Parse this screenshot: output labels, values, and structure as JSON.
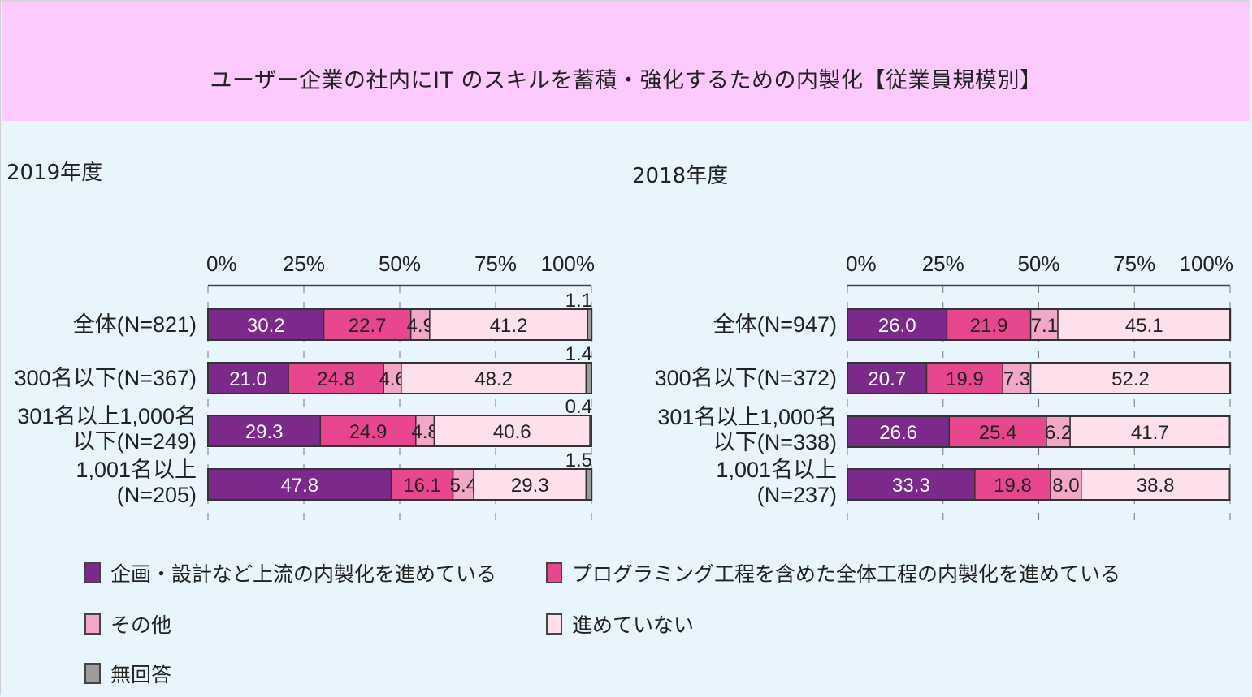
{
  "title": "ユーザー企業の社内にIT のスキルを蓄積・強化するための内製化【従業員規模別】",
  "chart_data": [
    {
      "type": "bar",
      "orientation": "horizontal-stacked-100",
      "title": "2019年度",
      "xlim": [
        0,
        100
      ],
      "x_ticks": [
        "0%",
        "25%",
        "50%",
        "75%",
        "100%"
      ],
      "categories": [
        [
          "全体(N=821)"
        ],
        [
          "300名以下(N=367)"
        ],
        [
          "301名以上1,000名",
          "以下(N=249)"
        ],
        [
          "1,001名以上",
          "(N=205)"
        ]
      ],
      "series": [
        {
          "name": "企画・設計など上流の内製化を進めている",
          "values": [
            30.2,
            21.0,
            29.3,
            47.8
          ],
          "labels": [
            "30.2",
            "21.0",
            "29.3",
            "47.8"
          ]
        },
        {
          "name": "プログラミング工程を含めた全体工程の内製化を進めている",
          "values": [
            22.7,
            24.8,
            24.9,
            16.1
          ],
          "labels": [
            "22.7",
            "24.8",
            "24.9",
            "16.1"
          ]
        },
        {
          "name": "その他",
          "values": [
            4.9,
            4.6,
            4.8,
            5.4
          ],
          "labels": [
            "4.9",
            "4.6",
            "4.8",
            "5.4"
          ]
        },
        {
          "name": "進めていない",
          "values": [
            41.2,
            48.2,
            40.6,
            29.3
          ],
          "labels": [
            "41.2",
            "48.2",
            "40.6",
            "29.3"
          ]
        },
        {
          "name": "無回答",
          "values": [
            1.1,
            1.4,
            0.4,
            1.5
          ],
          "labels": [
            "1.1",
            "1.4",
            "0.4",
            "1.5"
          ]
        }
      ]
    },
    {
      "type": "bar",
      "orientation": "horizontal-stacked-100",
      "title": "2018年度",
      "xlim": [
        0,
        100
      ],
      "x_ticks": [
        "0%",
        "25%",
        "50%",
        "75%",
        "100%"
      ],
      "categories": [
        [
          "全体(N=947)"
        ],
        [
          "300名以下(N=372)"
        ],
        [
          "301名以上1,000名",
          "以下(N=338)"
        ],
        [
          "1,001名以上",
          "(N=237)"
        ]
      ],
      "series": [
        {
          "name": "企画・設計など上流の内製化を進めている",
          "values": [
            26.0,
            20.7,
            26.6,
            33.3
          ],
          "labels": [
            "26.0",
            "20.7",
            "26.6",
            "33.3"
          ]
        },
        {
          "name": "プログラミング工程を含めた全体工程の内製化を進めている",
          "values": [
            21.9,
            19.9,
            25.4,
            19.8
          ],
          "labels": [
            "21.9",
            "19.9",
            "25.4",
            "19.8"
          ]
        },
        {
          "name": "その他",
          "values": [
            7.1,
            7.3,
            6.2,
            8.0
          ],
          "labels": [
            "7.1",
            "7.3",
            "6.2",
            "8.0"
          ]
        },
        {
          "name": "進めていない",
          "values": [
            45.1,
            52.2,
            41.7,
            38.8
          ],
          "labels": [
            "45.1",
            "52.2",
            "41.7",
            "38.8"
          ]
        }
      ]
    }
  ],
  "legend": [
    {
      "label": "企画・設計など上流の内製化を進めている",
      "color": "#7b2a8c"
    },
    {
      "label": "プログラミング工程を含めた全体工程の内製化を進めている",
      "color": "#e8468f"
    },
    {
      "label": "その他",
      "color": "#f2a7c8"
    },
    {
      "label": "進めていない",
      "color": "#fde0eb"
    },
    {
      "label": "無回答",
      "color": "#9c9c9c"
    }
  ],
  "label_colors": [
    "#ffffff",
    "#222222",
    "#222222",
    "#222222",
    "#222222"
  ]
}
